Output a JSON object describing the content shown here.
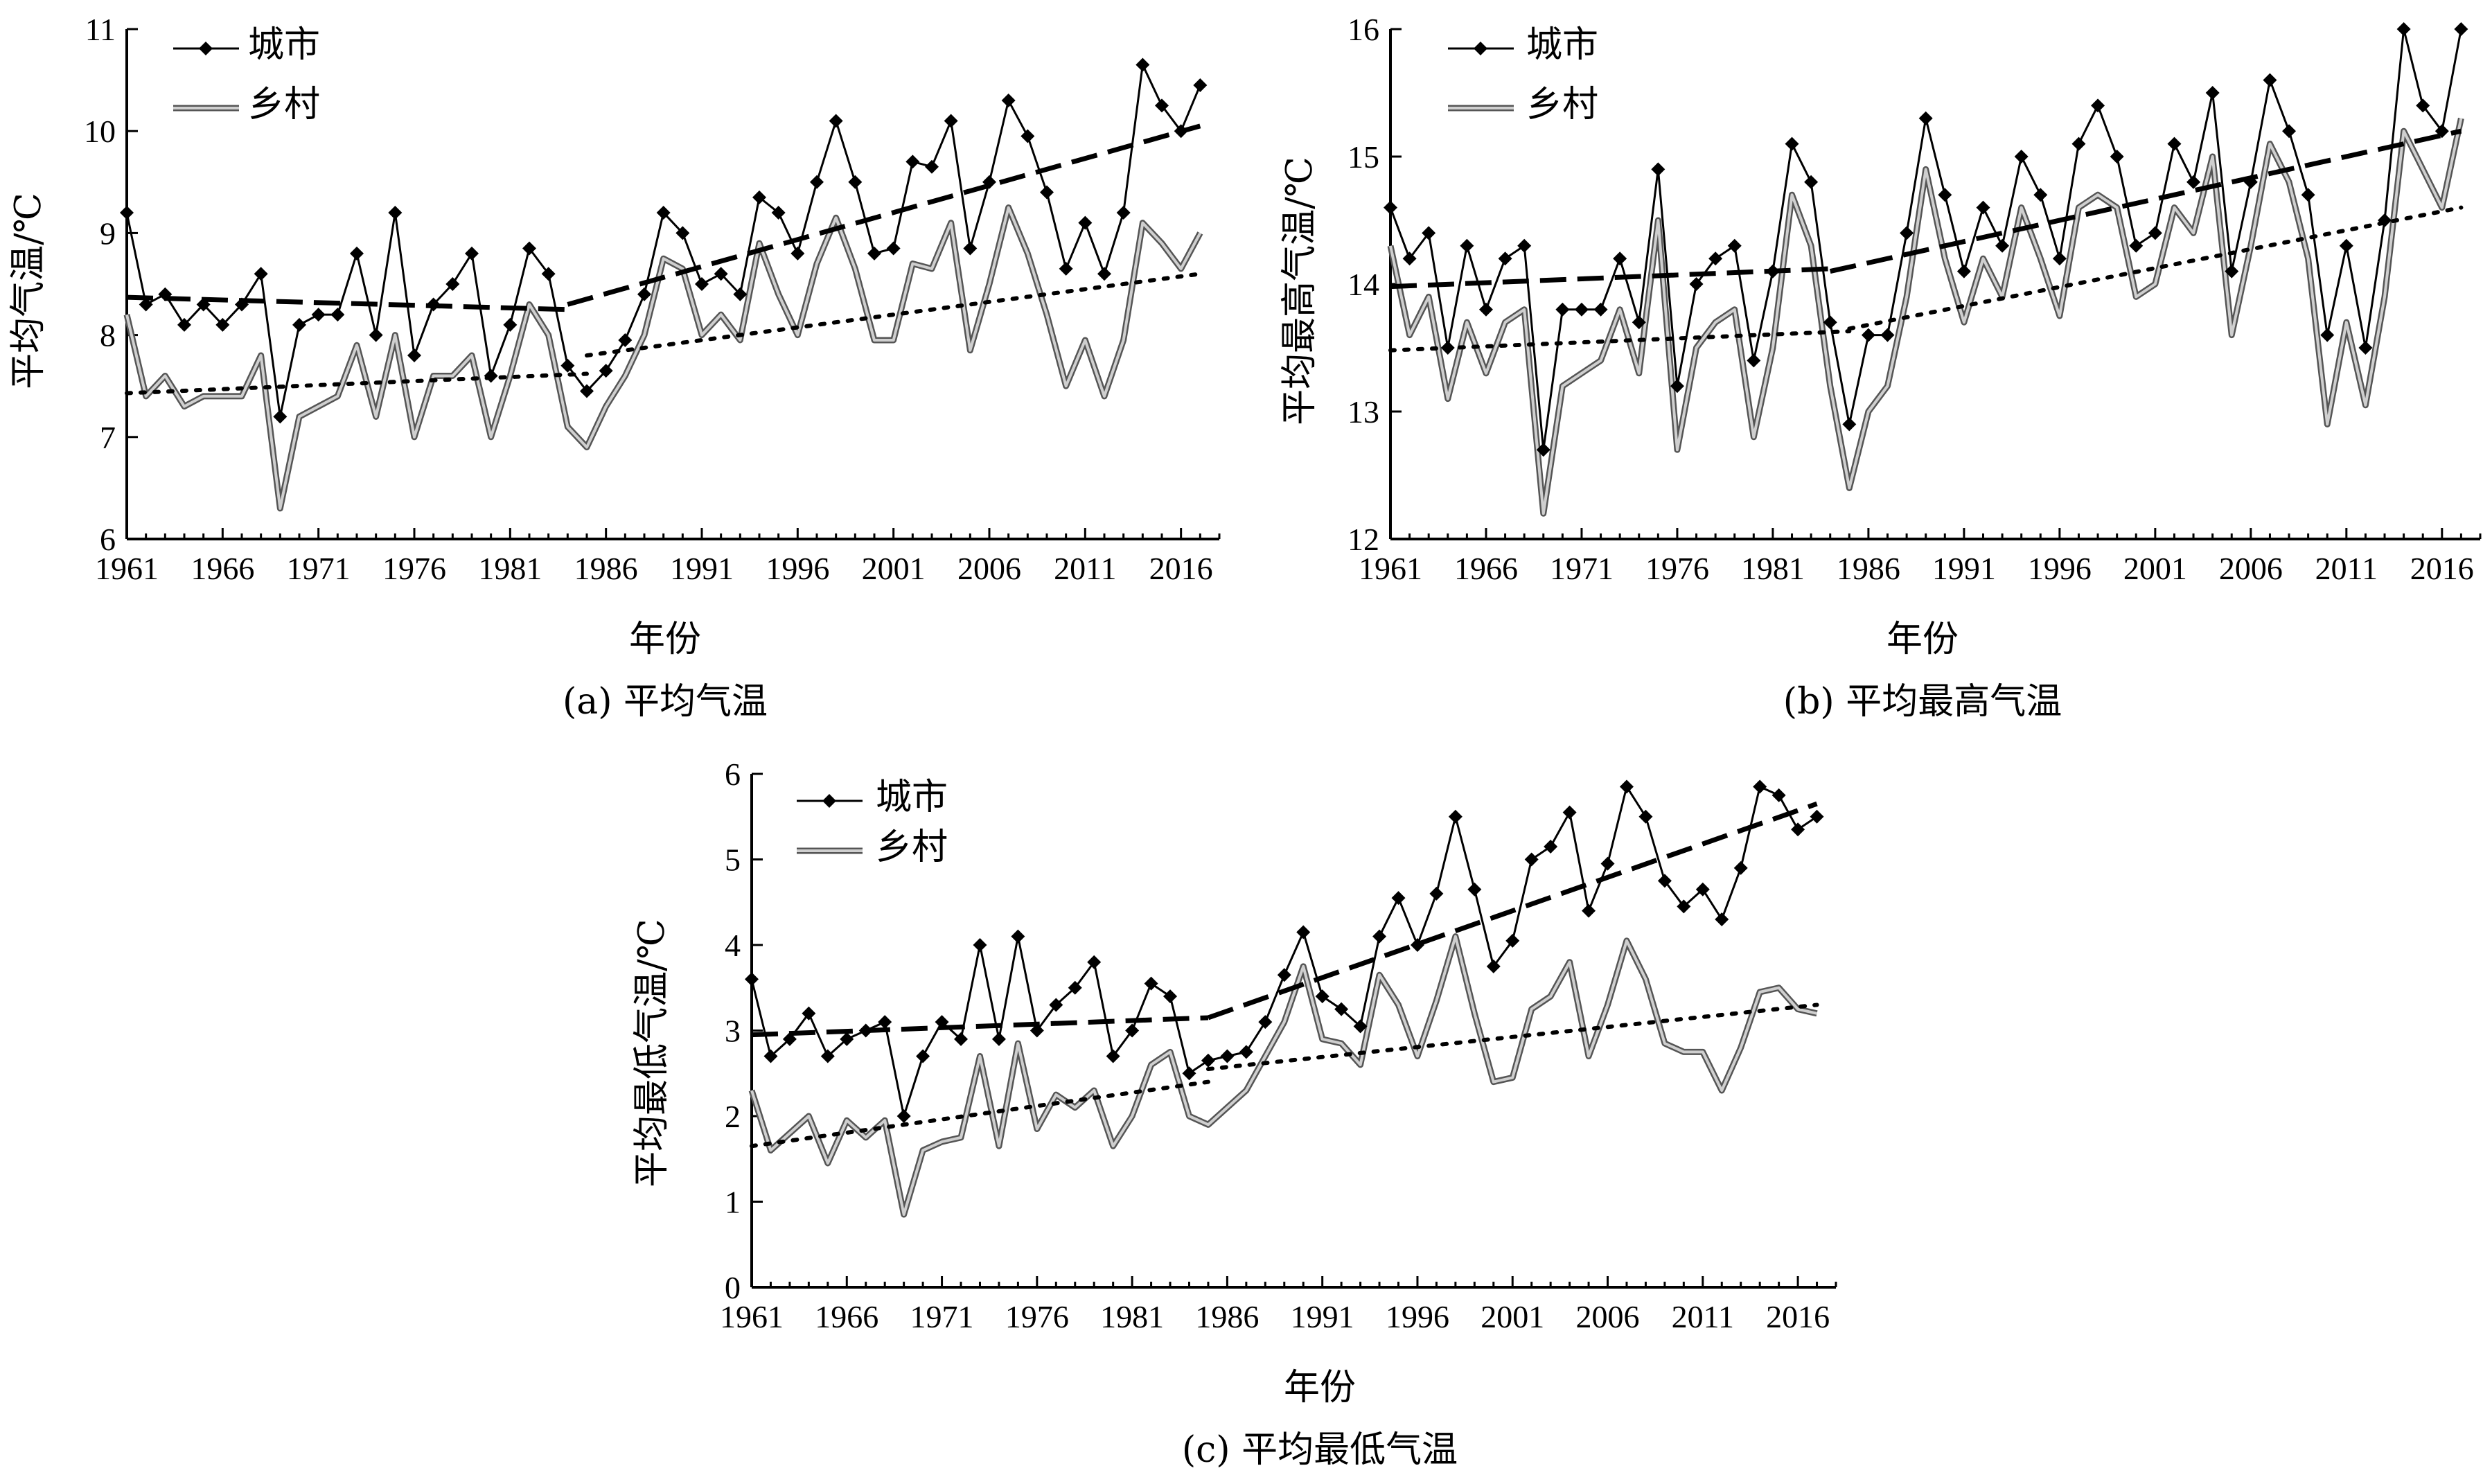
{
  "chart_data": [
    {
      "type": "line",
      "caption": "(a) 平均气温",
      "xlabel": "年份",
      "ylabel": "平均气温/℃",
      "xlim": [
        1961,
        2018
      ],
      "ylim": [
        6,
        11
      ],
      "xticks": [
        "1961",
        "1966",
        "1971",
        "1976",
        "1981",
        "1986",
        "1991",
        "1996",
        "2001",
        "2006",
        "2011",
        "2016"
      ],
      "yticks": [
        "6",
        "7",
        "8",
        "9",
        "10",
        "11"
      ],
      "x": [
        1961,
        1962,
        1963,
        1964,
        1965,
        1966,
        1967,
        1968,
        1969,
        1970,
        1971,
        1972,
        1973,
        1974,
        1975,
        1976,
        1977,
        1978,
        1979,
        1980,
        1981,
        1982,
        1983,
        1984,
        1985,
        1986,
        1987,
        1988,
        1989,
        1990,
        1991,
        1992,
        1993,
        1994,
        1995,
        1996,
        1997,
        1998,
        1999,
        2000,
        2001,
        2002,
        2003,
        2004,
        2005,
        2006,
        2007,
        2008,
        2009,
        2010,
        2011,
        2012,
        2013,
        2014,
        2015,
        2016,
        2017
      ],
      "series": [
        {
          "name": "城市",
          "marker": "diamond",
          "values": [
            9.2,
            8.3,
            8.4,
            8.1,
            8.3,
            8.1,
            8.3,
            8.6,
            7.2,
            8.1,
            8.2,
            8.2,
            8.8,
            8.0,
            9.2,
            7.8,
            8.3,
            8.5,
            8.8,
            7.6,
            8.1,
            8.85,
            8.6,
            7.7,
            7.45,
            7.65,
            7.95,
            8.4,
            9.2,
            9.0,
            8.5,
            8.6,
            8.4,
            9.35,
            9.2,
            8.8,
            9.5,
            10.1,
            9.5,
            8.8,
            8.85,
            9.7,
            9.65,
            10.1,
            8.85,
            9.5,
            10.3,
            9.95,
            9.4,
            8.65,
            9.1,
            8.6,
            9.2,
            10.65,
            10.25,
            10.0,
            10.45
          ]
        },
        {
          "name": "乡村",
          "marker": "none",
          "values": [
            8.2,
            7.4,
            7.6,
            7.3,
            7.4,
            7.4,
            7.4,
            7.8,
            6.3,
            7.2,
            7.3,
            7.4,
            7.9,
            7.2,
            8.0,
            7.0,
            7.6,
            7.6,
            7.8,
            7.0,
            7.6,
            8.3,
            8.0,
            7.1,
            6.9,
            7.3,
            7.6,
            8.0,
            8.75,
            8.65,
            8.0,
            8.2,
            7.95,
            8.9,
            8.4,
            8.0,
            8.7,
            9.15,
            8.65,
            7.95,
            7.95,
            8.7,
            8.65,
            9.1,
            7.85,
            8.5,
            9.25,
            8.8,
            8.2,
            7.5,
            7.95,
            7.4,
            7.95,
            9.1,
            8.9,
            8.65,
            9.0
          ]
        }
      ],
      "trends": [
        {
          "series": "城市",
          "style": "dashed",
          "segments": [
            [
              1961,
              8.37,
              1984,
              8.25
            ],
            [
              1984,
              8.3,
              2017,
              10.05
            ]
          ]
        },
        {
          "series": "乡村",
          "style": "dotted",
          "segments": [
            [
              1961,
              7.43,
              1985,
              7.62
            ],
            [
              1985,
              7.8,
              2017,
              8.6
            ]
          ]
        }
      ],
      "legend": "top-left"
    },
    {
      "type": "line",
      "caption": "(b) 平均最高气温",
      "xlabel": "年份",
      "ylabel": "平均最高气温/℃",
      "xlim": [
        1961,
        2018
      ],
      "ylim": [
        12,
        16
      ],
      "xticks": [
        "1961",
        "1966",
        "1971",
        "1976",
        "1981",
        "1986",
        "1991",
        "1996",
        "2001",
        "2006",
        "2011",
        "2016"
      ],
      "yticks": [
        "12",
        "13",
        "14",
        "15",
        "16"
      ],
      "x": [
        1961,
        1962,
        1963,
        1964,
        1965,
        1966,
        1967,
        1968,
        1969,
        1970,
        1971,
        1972,
        1973,
        1974,
        1975,
        1976,
        1977,
        1978,
        1979,
        1980,
        1981,
        1982,
        1983,
        1984,
        1985,
        1986,
        1987,
        1988,
        1989,
        1990,
        1991,
        1992,
        1993,
        1994,
        1995,
        1996,
        1997,
        1998,
        1999,
        2000,
        2001,
        2002,
        2003,
        2004,
        2005,
        2006,
        2007,
        2008,
        2009,
        2010,
        2011,
        2012,
        2013,
        2014,
        2015,
        2016,
        2017
      ],
      "series": [
        {
          "name": "城市",
          "marker": "diamond",
          "values": [
            14.6,
            14.2,
            14.4,
            13.5,
            14.3,
            13.8,
            14.2,
            14.3,
            12.7,
            13.8,
            13.8,
            13.8,
            14.2,
            13.7,
            14.9,
            13.2,
            14.0,
            14.2,
            14.3,
            13.4,
            14.1,
            15.1,
            14.8,
            13.7,
            12.9,
            13.6,
            13.6,
            14.4,
            15.3,
            14.7,
            14.1,
            14.6,
            14.3,
            15.0,
            14.7,
            14.2,
            15.1,
            15.4,
            15.0,
            14.3,
            14.4,
            15.1,
            14.8,
            15.5,
            14.1,
            14.8,
            15.6,
            15.2,
            14.7,
            13.6,
            14.3,
            13.5,
            14.5,
            16.0,
            15.4,
            15.2,
            16.0
          ]
        },
        {
          "name": "乡村",
          "marker": "none",
          "values": [
            14.3,
            13.6,
            13.9,
            13.1,
            13.7,
            13.3,
            13.7,
            13.8,
            12.2,
            13.2,
            13.3,
            13.4,
            13.8,
            13.3,
            14.5,
            12.7,
            13.5,
            13.7,
            13.8,
            12.8,
            13.5,
            14.7,
            14.3,
            13.2,
            12.4,
            13.0,
            13.2,
            13.9,
            14.9,
            14.2,
            13.7,
            14.2,
            13.9,
            14.6,
            14.2,
            13.75,
            14.6,
            14.7,
            14.6,
            13.9,
            14.0,
            14.6,
            14.4,
            15.0,
            13.6,
            14.3,
            15.1,
            14.8,
            14.2,
            12.9,
            13.7,
            13.05,
            13.9,
            15.2,
            14.9,
            14.6,
            15.3
          ]
        }
      ],
      "trends": [
        {
          "series": "城市",
          "style": "dashed",
          "segments": [
            [
              1961,
              13.98,
              1984,
              14.12
            ],
            [
              1984,
              14.1,
              2017,
              15.2
            ]
          ]
        },
        {
          "series": "乡村",
          "style": "dotted",
          "segments": [
            [
              1961,
              13.48,
              1985,
              13.63
            ],
            [
              1985,
              13.65,
              2017,
              14.6
            ]
          ]
        }
      ],
      "legend": "top-left"
    },
    {
      "type": "line",
      "caption": "(c) 平均最低气温",
      "xlabel": "年份",
      "ylabel": "平均最低气温/℃",
      "xlim": [
        1961,
        2018
      ],
      "ylim": [
        0,
        6
      ],
      "xticks": [
        "1961",
        "1966",
        "1971",
        "1976",
        "1981",
        "1986",
        "1991",
        "1996",
        "2001",
        "2006",
        "2011",
        "2016"
      ],
      "yticks": [
        "0",
        "1",
        "2",
        "3",
        "4",
        "5",
        "6"
      ],
      "x": [
        1961,
        1962,
        1963,
        1964,
        1965,
        1966,
        1967,
        1968,
        1969,
        1970,
        1971,
        1972,
        1973,
        1974,
        1975,
        1976,
        1977,
        1978,
        1979,
        1980,
        1981,
        1982,
        1983,
        1984,
        1985,
        1986,
        1987,
        1988,
        1989,
        1990,
        1991,
        1992,
        1993,
        1994,
        1995,
        1996,
        1997,
        1998,
        1999,
        2000,
        2001,
        2002,
        2003,
        2004,
        2005,
        2006,
        2007,
        2008,
        2009,
        2010,
        2011,
        2012,
        2013,
        2014,
        2015,
        2016,
        2017
      ],
      "series": [
        {
          "name": "城市",
          "marker": "diamond",
          "values": [
            3.6,
            2.7,
            2.9,
            3.2,
            2.7,
            2.9,
            3.0,
            3.1,
            2.0,
            2.7,
            3.1,
            2.9,
            4.0,
            2.9,
            4.1,
            3.0,
            3.3,
            3.5,
            3.8,
            2.7,
            3.0,
            3.55,
            3.4,
            2.5,
            2.65,
            2.7,
            2.75,
            3.1,
            3.65,
            4.15,
            3.4,
            3.25,
            3.05,
            4.1,
            4.55,
            4.0,
            4.6,
            5.5,
            4.65,
            3.75,
            4.05,
            5.0,
            5.15,
            5.55,
            4.4,
            4.95,
            5.85,
            5.5,
            4.75,
            4.45,
            4.65,
            4.3,
            4.9,
            5.85,
            5.75,
            5.35,
            5.5
          ]
        },
        {
          "name": "乡村",
          "marker": "none",
          "values": [
            2.3,
            1.6,
            1.8,
            2.0,
            1.45,
            1.95,
            1.75,
            1.95,
            0.85,
            1.6,
            1.7,
            1.75,
            2.7,
            1.65,
            2.85,
            1.85,
            2.25,
            2.1,
            2.3,
            1.65,
            2.0,
            2.6,
            2.75,
            2.0,
            1.9,
            2.1,
            2.3,
            2.7,
            3.1,
            3.75,
            2.9,
            2.85,
            2.6,
            3.65,
            3.3,
            2.7,
            3.35,
            4.1,
            3.2,
            2.4,
            2.45,
            3.25,
            3.4,
            3.8,
            2.7,
            3.3,
            4.05,
            3.6,
            2.85,
            2.75,
            2.75,
            2.3,
            2.8,
            3.45,
            3.5,
            3.25,
            3.2
          ]
        }
      ],
      "trends": [
        {
          "series": "城市",
          "style": "dashed",
          "segments": [
            [
              1961,
              2.95,
              1985,
              3.15
            ],
            [
              1985,
              3.15,
              2017,
              5.65
            ]
          ]
        },
        {
          "series": "乡村",
          "style": "dotted",
          "segments": [
            [
              1961,
              1.65,
              1985,
              2.4
            ],
            [
              1985,
              2.55,
              2017,
              3.3
            ]
          ]
        }
      ],
      "legend": "top-left"
    }
  ]
}
